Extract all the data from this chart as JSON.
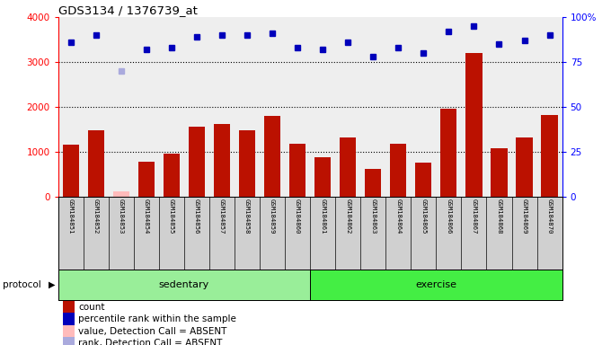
{
  "title": "GDS3134 / 1376739_at",
  "samples": [
    "GSM184851",
    "GSM184852",
    "GSM184853",
    "GSM184854",
    "GSM184855",
    "GSM184856",
    "GSM184857",
    "GSM184858",
    "GSM184859",
    "GSM184860",
    "GSM184861",
    "GSM184862",
    "GSM184863",
    "GSM184864",
    "GSM184865",
    "GSM184866",
    "GSM184867",
    "GSM184868",
    "GSM184869",
    "GSM184870"
  ],
  "counts": [
    1150,
    1480,
    120,
    780,
    950,
    1560,
    1620,
    1470,
    1800,
    1180,
    880,
    1310,
    620,
    1180,
    750,
    1960,
    3200,
    1070,
    1320,
    1820
  ],
  "absent_count_idx": [
    2
  ],
  "absent_rank_idx": [
    2
  ],
  "percentile_ranks": [
    86,
    90,
    70,
    82,
    83,
    89,
    90,
    90,
    91,
    83,
    82,
    86,
    78,
    83,
    80,
    92,
    95,
    85,
    87,
    90
  ],
  "groups": [
    "sedentary",
    "sedentary",
    "sedentary",
    "sedentary",
    "sedentary",
    "sedentary",
    "sedentary",
    "sedentary",
    "sedentary",
    "sedentary",
    "exercise",
    "exercise",
    "exercise",
    "exercise",
    "exercise",
    "exercise",
    "exercise",
    "exercise",
    "exercise",
    "exercise"
  ],
  "sedentary_color": "#99ee99",
  "exercise_color": "#44ee44",
  "bar_color_normal": "#bb1100",
  "bar_color_absent": "#ffbbbb",
  "dot_color_normal": "#0000bb",
  "dot_color_absent": "#aaaadd",
  "ylim_left": [
    0,
    4000
  ],
  "ylim_right": [
    0,
    100
  ],
  "yticks_left": [
    0,
    1000,
    2000,
    3000,
    4000
  ],
  "yticks_right": [
    0,
    25,
    50,
    75,
    100
  ],
  "background_plot": "#eeeeee",
  "legend_items": [
    {
      "label": "count",
      "color": "#bb1100"
    },
    {
      "label": "percentile rank within the sample",
      "color": "#0000bb"
    },
    {
      "label": "value, Detection Call = ABSENT",
      "color": "#ffbbbb"
    },
    {
      "label": "rank, Detection Call = ABSENT",
      "color": "#aaaadd"
    }
  ]
}
